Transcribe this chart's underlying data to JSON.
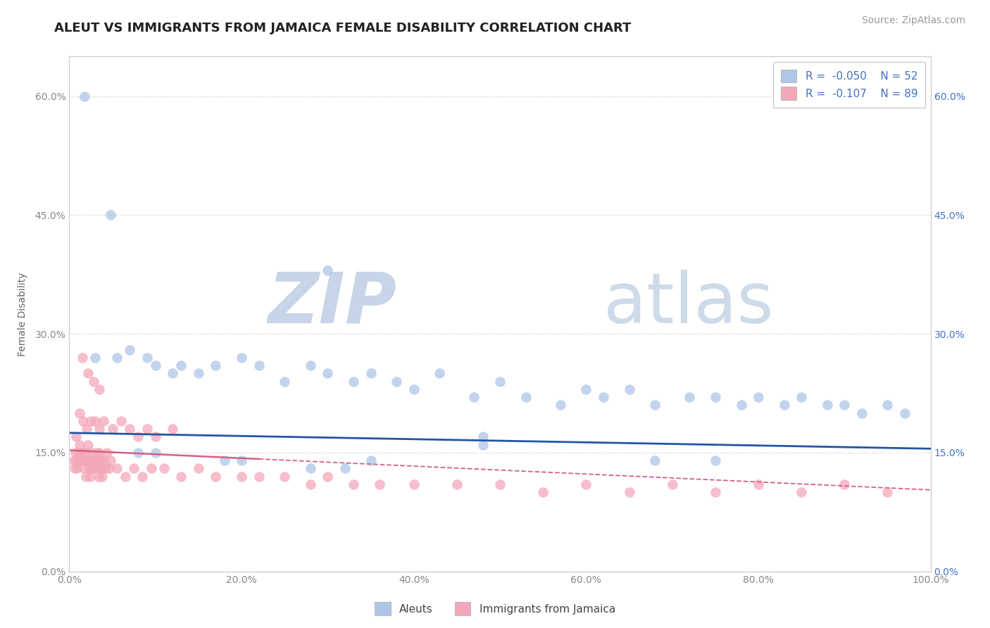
{
  "title": "ALEUT VS IMMIGRANTS FROM JAMAICA FEMALE DISABILITY CORRELATION CHART",
  "source": "Source: ZipAtlas.com",
  "ylabel": "Female Disability",
  "legend_entries": [
    {
      "label": "Aleuts",
      "color": "#aec6e8",
      "R": "-0.050",
      "N": "52"
    },
    {
      "label": "Immigrants from Jamaica",
      "color": "#f4a7b9",
      "R": "-0.107",
      "N": "89"
    }
  ],
  "aleut_x": [
    0.018,
    0.048,
    0.03,
    0.055,
    0.07,
    0.09,
    0.1,
    0.12,
    0.13,
    0.15,
    0.17,
    0.2,
    0.22,
    0.25,
    0.28,
    0.3,
    0.33,
    0.35,
    0.38,
    0.4,
    0.43,
    0.47,
    0.5,
    0.53,
    0.57,
    0.6,
    0.62,
    0.65,
    0.68,
    0.72,
    0.75,
    0.78,
    0.8,
    0.83,
    0.85,
    0.88,
    0.9,
    0.92,
    0.95,
    0.97,
    0.3,
    0.48,
    0.48,
    0.08,
    0.1,
    0.18,
    0.2,
    0.28,
    0.32,
    0.35,
    0.68,
    0.75
  ],
  "aleut_y": [
    0.6,
    0.45,
    0.27,
    0.27,
    0.28,
    0.27,
    0.26,
    0.25,
    0.26,
    0.25,
    0.26,
    0.27,
    0.26,
    0.24,
    0.26,
    0.25,
    0.24,
    0.25,
    0.24,
    0.23,
    0.25,
    0.22,
    0.24,
    0.22,
    0.21,
    0.23,
    0.22,
    0.23,
    0.21,
    0.22,
    0.22,
    0.21,
    0.22,
    0.21,
    0.22,
    0.21,
    0.21,
    0.2,
    0.21,
    0.2,
    0.38,
    0.17,
    0.16,
    0.15,
    0.15,
    0.14,
    0.14,
    0.13,
    0.13,
    0.14,
    0.14,
    0.14
  ],
  "jamaica_x": [
    0.005,
    0.006,
    0.007,
    0.008,
    0.009,
    0.01,
    0.011,
    0.012,
    0.013,
    0.014,
    0.015,
    0.016,
    0.017,
    0.018,
    0.019,
    0.02,
    0.021,
    0.022,
    0.023,
    0.024,
    0.025,
    0.026,
    0.027,
    0.028,
    0.029,
    0.03,
    0.031,
    0.032,
    0.033,
    0.034,
    0.035,
    0.036,
    0.037,
    0.038,
    0.039,
    0.04,
    0.042,
    0.044,
    0.046,
    0.048,
    0.055,
    0.065,
    0.075,
    0.085,
    0.095,
    0.11,
    0.13,
    0.15,
    0.17,
    0.2,
    0.22,
    0.25,
    0.28,
    0.3,
    0.33,
    0.36,
    0.4,
    0.45,
    0.5,
    0.55,
    0.6,
    0.65,
    0.7,
    0.75,
    0.8,
    0.85,
    0.9,
    0.95,
    0.008,
    0.012,
    0.016,
    0.02,
    0.025,
    0.03,
    0.035,
    0.04,
    0.05,
    0.06,
    0.07,
    0.08,
    0.09,
    0.1,
    0.12,
    0.015,
    0.022,
    0.028,
    0.035
  ],
  "jamaica_y": [
    0.14,
    0.13,
    0.15,
    0.14,
    0.13,
    0.15,
    0.14,
    0.16,
    0.15,
    0.14,
    0.15,
    0.14,
    0.13,
    0.14,
    0.12,
    0.15,
    0.14,
    0.16,
    0.13,
    0.12,
    0.14,
    0.13,
    0.15,
    0.14,
    0.13,
    0.14,
    0.13,
    0.15,
    0.14,
    0.12,
    0.15,
    0.13,
    0.14,
    0.12,
    0.13,
    0.14,
    0.13,
    0.15,
    0.13,
    0.14,
    0.13,
    0.12,
    0.13,
    0.12,
    0.13,
    0.13,
    0.12,
    0.13,
    0.12,
    0.12,
    0.12,
    0.12,
    0.11,
    0.12,
    0.11,
    0.11,
    0.11,
    0.11,
    0.11,
    0.1,
    0.11,
    0.1,
    0.11,
    0.1,
    0.11,
    0.1,
    0.11,
    0.1,
    0.17,
    0.2,
    0.19,
    0.18,
    0.19,
    0.19,
    0.18,
    0.19,
    0.18,
    0.19,
    0.18,
    0.17,
    0.18,
    0.17,
    0.18,
    0.27,
    0.25,
    0.24,
    0.23
  ],
  "aleut_line_color": "#2455a4",
  "jamaica_line_color": "#d46080",
  "aleut_scatter_color": "#aec6e8",
  "jamaica_scatter_color": "#f4a7b9",
  "background_color": "#ffffff",
  "grid_color": "#cccccc",
  "watermark_zip": "ZIP",
  "watermark_atlas": "atlas",
  "watermark_color_zip": "#c8d4e8",
  "watermark_color_atlas": "#b8cce0",
  "title_fontsize": 13,
  "axis_label_fontsize": 10,
  "tick_fontsize": 10,
  "legend_fontsize": 11,
  "source_fontsize": 10,
  "xlim": [
    0.0,
    1.0
  ],
  "ylim": [
    0.0,
    0.65
  ],
  "y_ticks": [
    0.0,
    0.15,
    0.3,
    0.45,
    0.6
  ],
  "x_ticks": [
    0.0,
    0.2,
    0.4,
    0.6,
    0.8,
    1.0
  ]
}
